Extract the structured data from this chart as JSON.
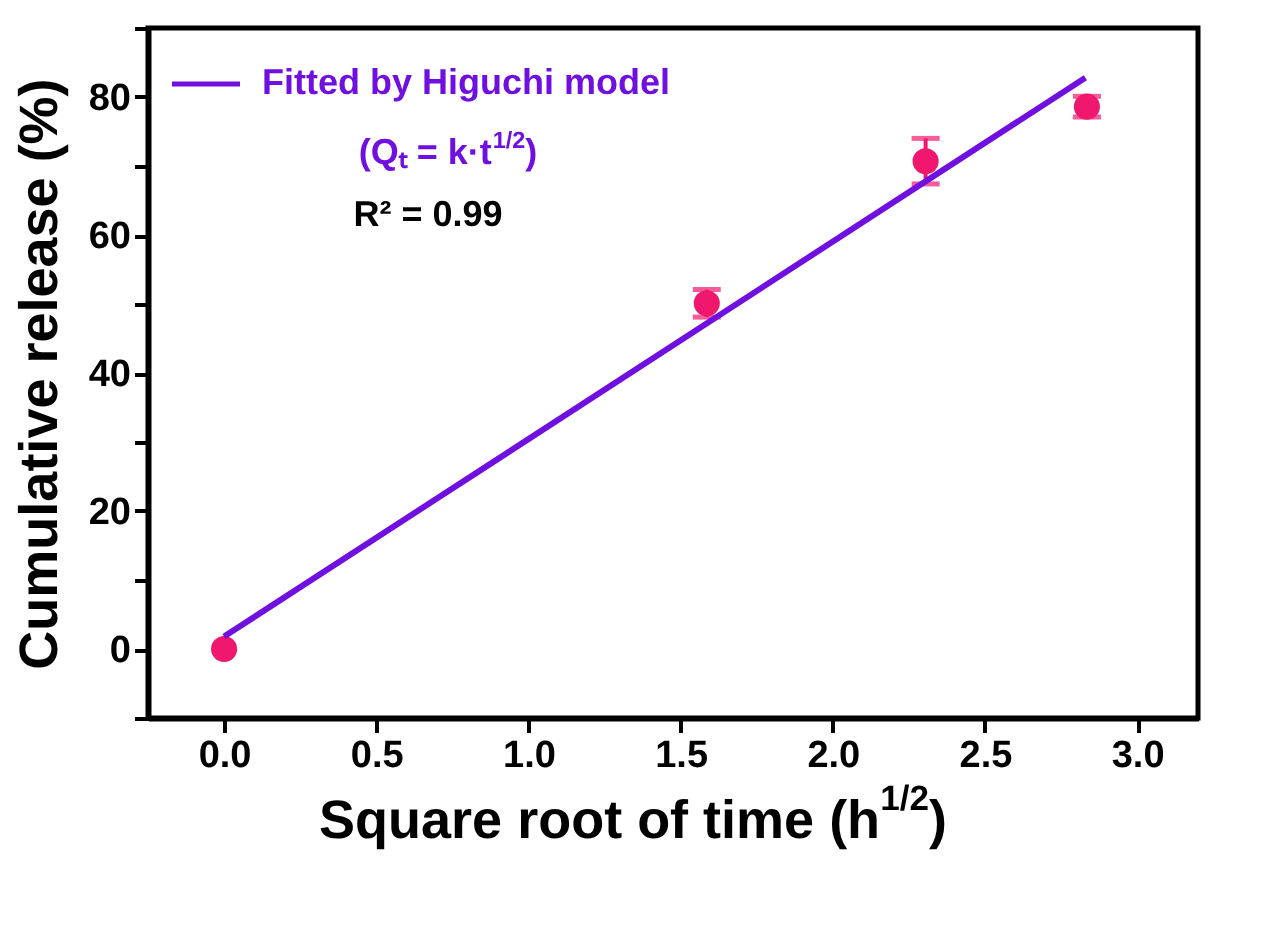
{
  "chart_data": {
    "type": "scatter",
    "xlabel": "Square root of time (h$^{1/2}$)",
    "ylabel": "Cumulative release (%)",
    "xlim": [
      -0.25,
      3.2
    ],
    "xticks": [
      {
        "value": 0,
        "label": "0.0"
      },
      0.5,
      {
        "value": 1,
        "label": "1.0"
      },
      1.5,
      {
        "value": 2,
        "label": "2.0"
      },
      2.5,
      {
        "value": 3,
        "label": "3.0"
      }
    ],
    "ylim": [
      -10,
      90
    ],
    "yticks": [
      {
        "value": -10,
        "label": null
      },
      0,
      {
        "value": 10,
        "label": null
      },
      20,
      {
        "value": 30,
        "label": null
      },
      40,
      {
        "value": 50,
        "label": null
      },
      60,
      {
        "value": 70,
        "label": null
      },
      80,
      {
        "value": 90,
        "label": null
      }
    ],
    "series": [
      {
        "type": "scatter",
        "color": "#f0186e",
        "x": [
          0.0,
          1.586,
          2.305,
          2.835
        ],
        "values": [
          0.0,
          50.1,
          70.7,
          78.6
        ],
        "errors": [
          null,
          2,
          3.3,
          1.5
        ],
        "marker": "circle"
      },
      {
        "type": "line",
        "name": "Fitted by Higuchi model",
        "color": "#7010e0",
        "x": [
          0.0,
          2.83
        ],
        "values": [
          1.8,
          82.8
        ],
        "line_style": "solid"
      }
    ],
    "annotations": [
      "(Qₜ = k·t$^{1/2}$)",
      "R² = 0.99"
    ],
    "legend": "top left",
    "grid": false
  }
}
